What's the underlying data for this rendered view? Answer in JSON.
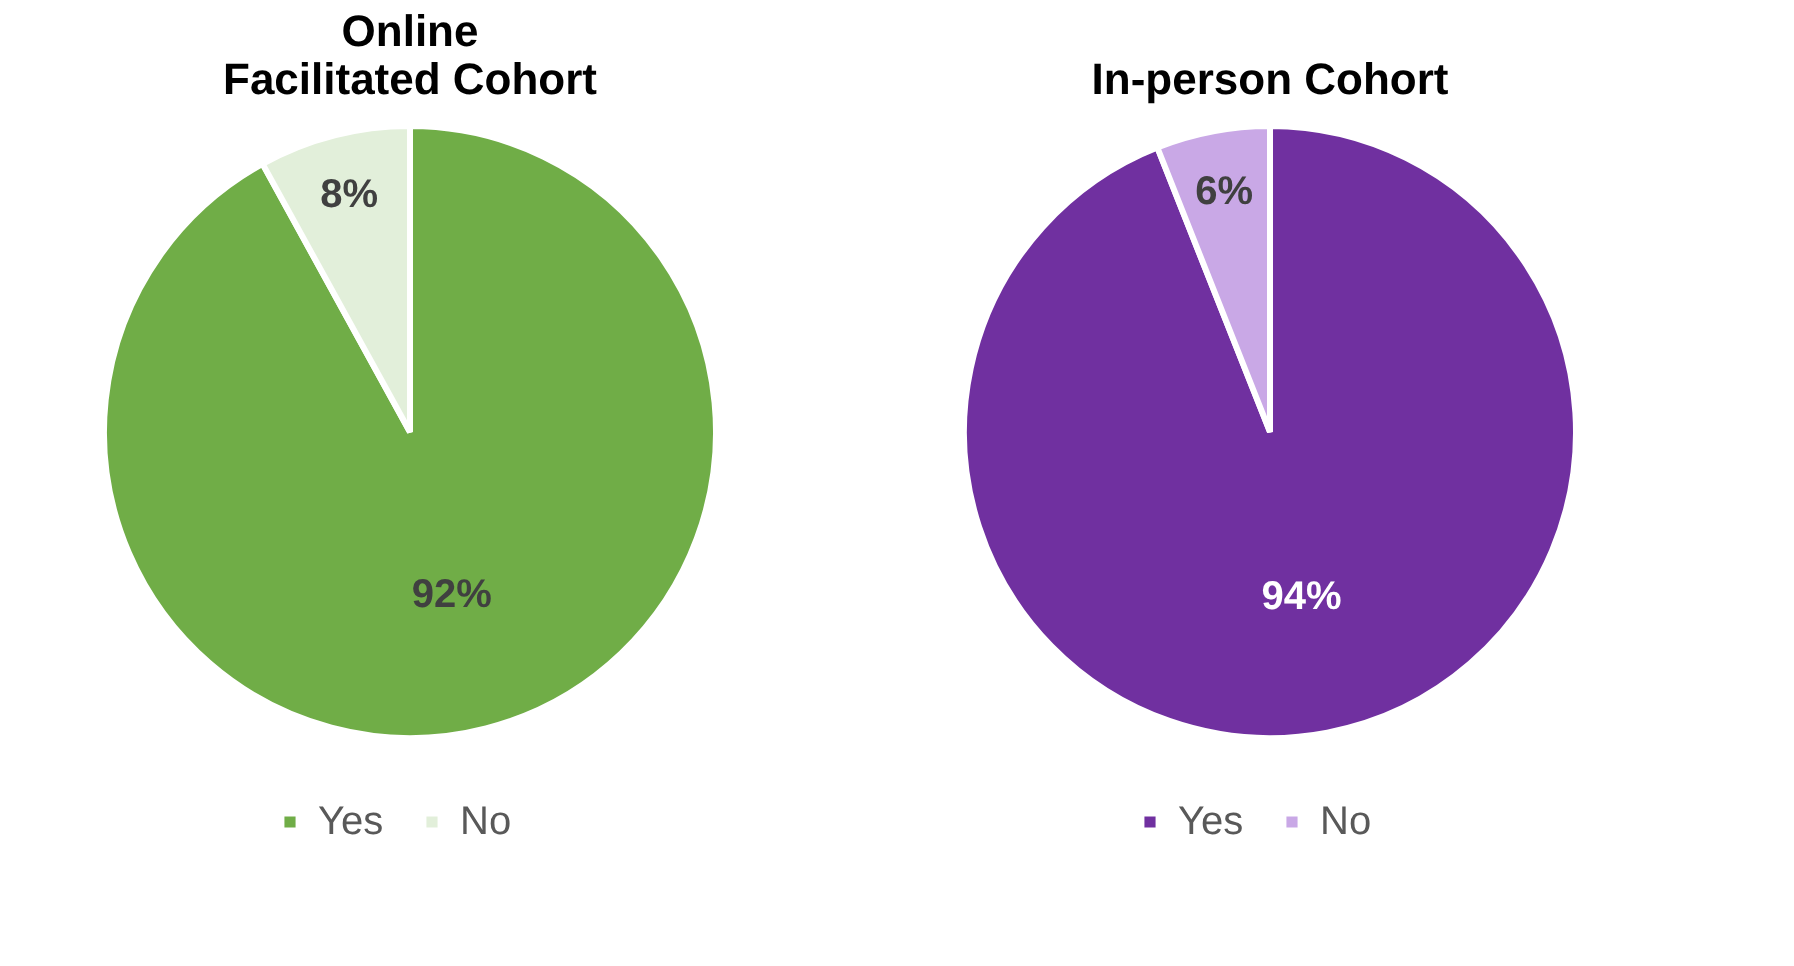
{
  "chart_data": [
    {
      "type": "pie",
      "title": "Online Facilitated Cohort",
      "categories": [
        "Yes",
        "No"
      ],
      "values": [
        92,
        8
      ],
      "colors": [
        "#70ad47",
        "#e2efda"
      ],
      "value_labels": [
        "92%",
        "8%"
      ],
      "legend": "bottom"
    },
    {
      "type": "pie",
      "title": "In-person Cohort",
      "categories": [
        "Yes",
        "No"
      ],
      "values": [
        94,
        6
      ],
      "colors": [
        "#7030a0",
        "#c9a8e6"
      ],
      "value_labels": [
        "94%",
        "6%"
      ],
      "legend": "bottom"
    }
  ]
}
